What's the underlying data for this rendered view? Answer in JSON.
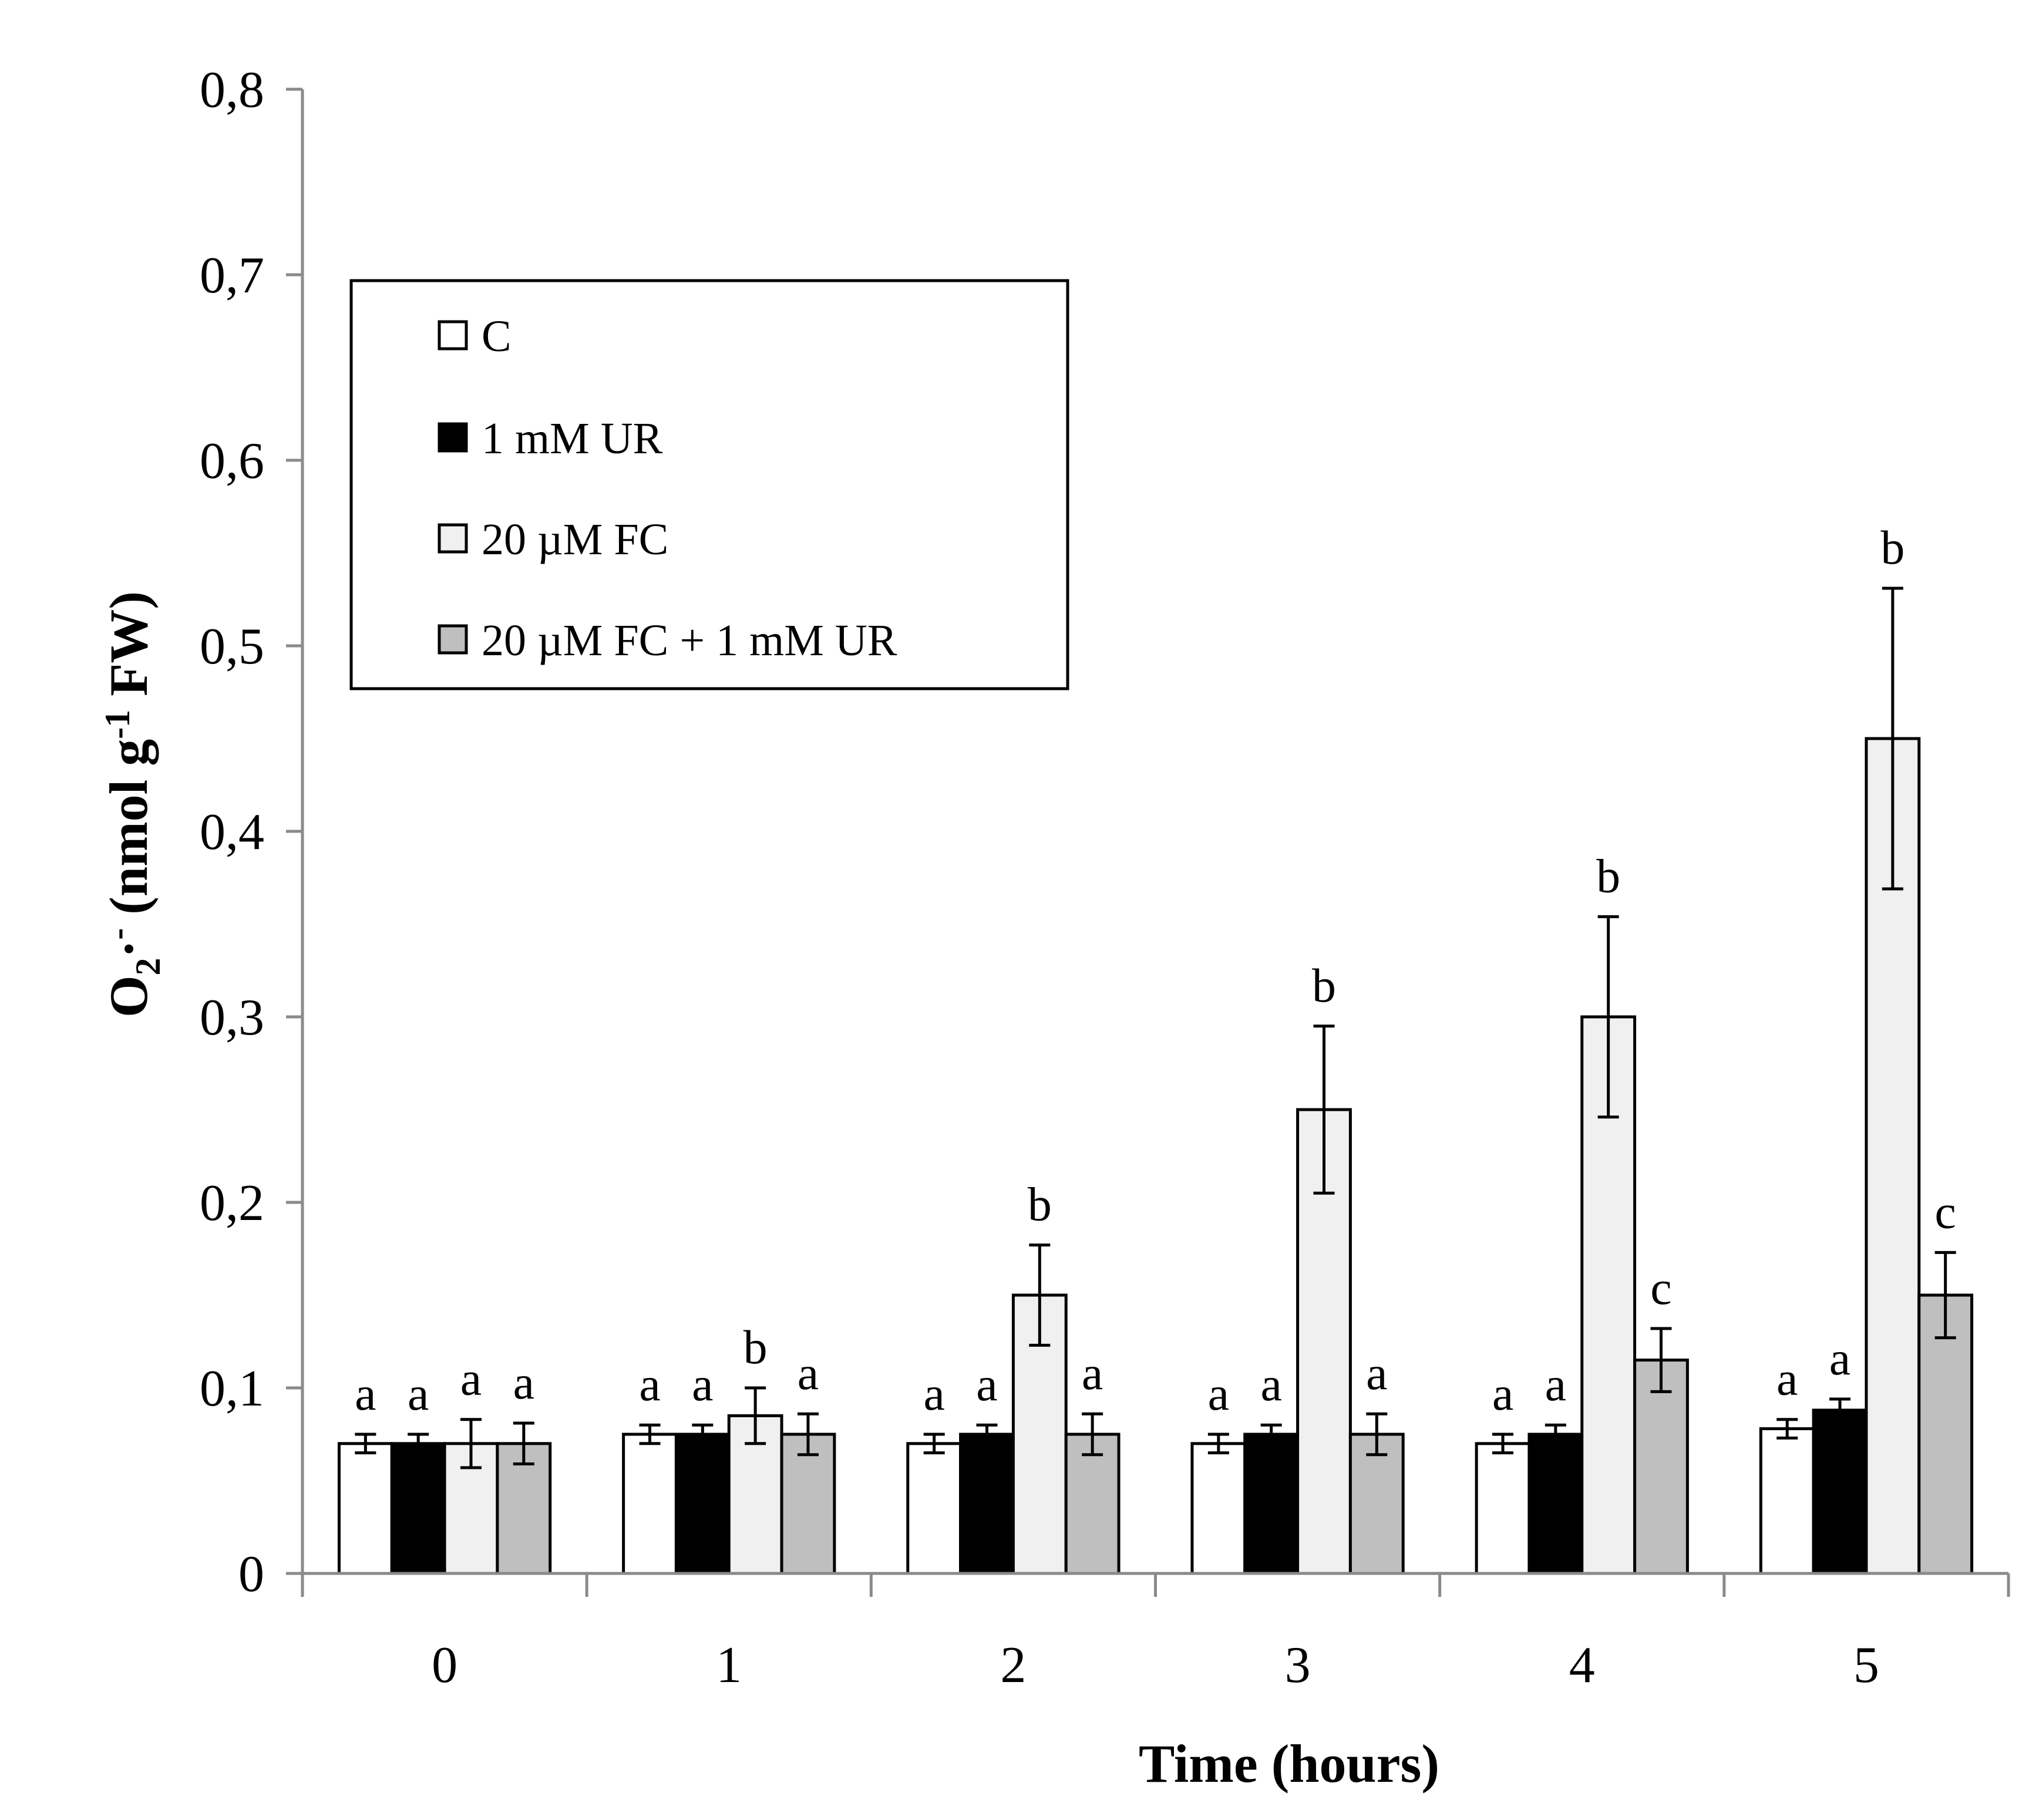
{
  "chart_data": {
    "type": "bar",
    "title": "",
    "xlabel": "Time (hours)",
    "ylabel_parts": [
      "O",
      "2",
      "·",
      "-",
      " (nmol g",
      "-1",
      " FW)"
    ],
    "ylim": [
      0,
      0.8
    ],
    "yticks": [
      0,
      0.1,
      0.2,
      0.3,
      0.4,
      0.5,
      0.6,
      0.7,
      0.8
    ],
    "ytick_labels": [
      "0",
      "0,1",
      "0,2",
      "0,3",
      "0,4",
      "0,5",
      "0,6",
      "0,7",
      "0,8"
    ],
    "categories": [
      "0",
      "1",
      "2",
      "3",
      "4",
      "5"
    ],
    "legend_position": "upper-left",
    "series": [
      {
        "name": "C",
        "color": "#ffffff",
        "values": [
          0.07,
          0.075,
          0.07,
          0.07,
          0.07,
          0.078
        ],
        "errors": [
          0.005,
          0.005,
          0.005,
          0.005,
          0.005,
          0.005
        ],
        "letters": [
          "a",
          "a",
          "a",
          "a",
          "a",
          "a"
        ]
      },
      {
        "name": "1 mM UR",
        "color": "#000000",
        "values": [
          0.07,
          0.075,
          0.075,
          0.075,
          0.075,
          0.088
        ],
        "errors": [
          0.005,
          0.005,
          0.005,
          0.005,
          0.005,
          0.006
        ],
        "letters": [
          "a",
          "a",
          "a",
          "a",
          "a",
          "a"
        ]
      },
      {
        "name": "20 µM FC",
        "color": "#f0f0f0",
        "values": [
          0.07,
          0.085,
          0.15,
          0.25,
          0.3,
          0.45
        ],
        "errors": [
          0.013,
          0.015,
          0.027,
          0.045,
          0.054,
          0.081
        ],
        "letters": [
          "a",
          "b",
          "b",
          "b",
          "b",
          "b"
        ]
      },
      {
        "name": "20 µM FC + 1 mM UR",
        "color": "#bfbfbf",
        "values": [
          0.07,
          0.075,
          0.075,
          0.075,
          0.115,
          0.15
        ],
        "errors": [
          0.011,
          0.011,
          0.011,
          0.011,
          0.017,
          0.023
        ],
        "letters": [
          "a",
          "a",
          "a",
          "a",
          "c",
          "c"
        ]
      }
    ]
  }
}
